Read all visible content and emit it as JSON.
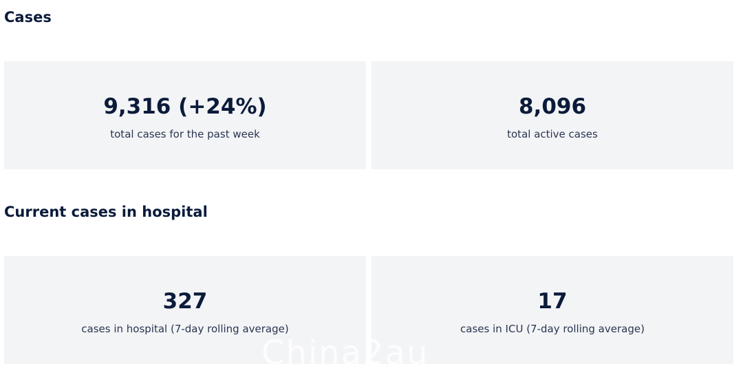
{
  "sections": [
    {
      "heading": "Cases",
      "cards": [
        {
          "value": "9,316 (+24%)",
          "label": "total cases for the past week"
        },
        {
          "value": "8,096",
          "label": "total active cases"
        }
      ]
    },
    {
      "heading": "Current cases in hospital",
      "cards": [
        {
          "value": "327",
          "label": "cases in hospital (7-day rolling average)"
        },
        {
          "value": "17",
          "label": "cases in ICU (7-day rolling average)"
        }
      ]
    }
  ],
  "watermark": "China2au"
}
